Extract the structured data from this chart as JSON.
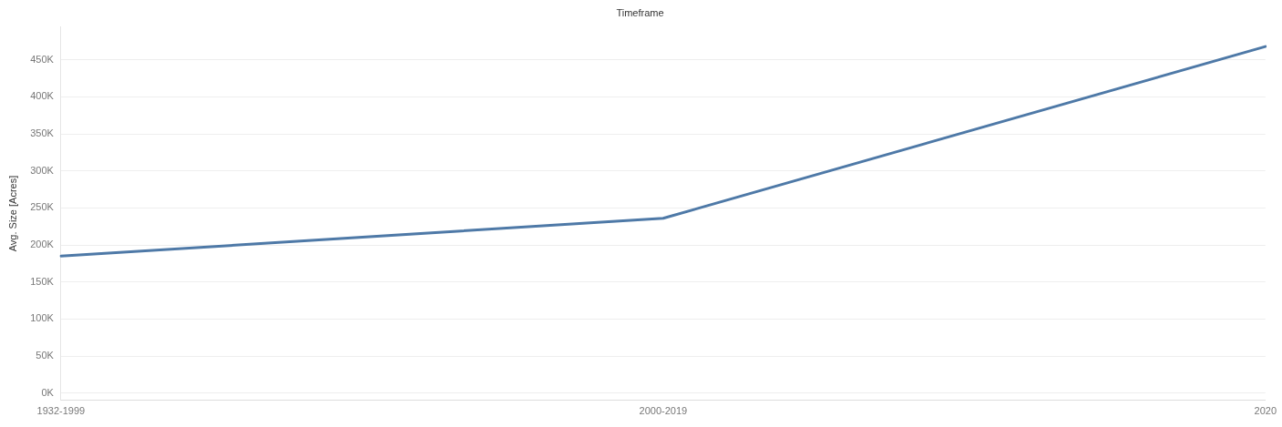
{
  "chart_data": {
    "type": "line",
    "title": "Timeframe",
    "ylabel": "Avg. Size [Acres]",
    "categories": [
      "1932-1999",
      "2000-2019",
      "2020"
    ],
    "series": [
      {
        "color": "#4e79a7",
        "values": [
          185000,
          236000,
          468000
        ]
      }
    ],
    "ylim": [
      -10000,
      495000
    ],
    "yticks": [
      {
        "value": 0,
        "label": "0K"
      },
      {
        "value": 50000,
        "label": "50K"
      },
      {
        "value": 100000,
        "label": "100K"
      },
      {
        "value": 150000,
        "label": "150K"
      },
      {
        "value": 200000,
        "label": "200K"
      },
      {
        "value": 250000,
        "label": "250K"
      },
      {
        "value": 300000,
        "label": "300K"
      },
      {
        "value": 350000,
        "label": "350K"
      },
      {
        "value": 400000,
        "label": "400K"
      },
      {
        "value": 450000,
        "label": "450K"
      }
    ],
    "grid": "y",
    "legend": false,
    "marker": "none",
    "line_style": "solid"
  }
}
